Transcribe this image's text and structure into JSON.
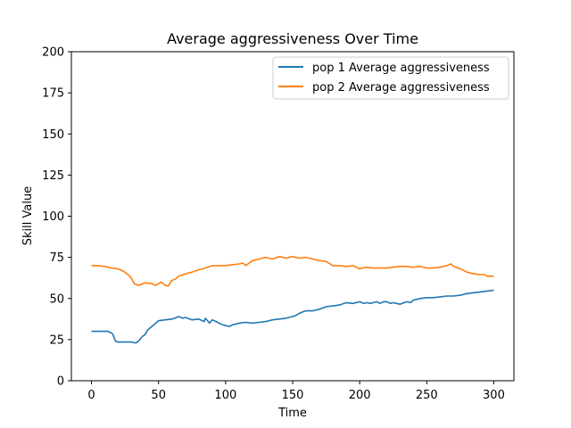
{
  "chart_data": {
    "type": "line",
    "title": "Average aggressiveness Over Time",
    "xlabel": "Time",
    "ylabel": "Skill Value",
    "xlim": [
      -15,
      315
    ],
    "ylim": [
      0,
      200
    ],
    "x_ticks": [
      "0",
      "50",
      "100",
      "150",
      "200",
      "250",
      "300"
    ],
    "y_ticks": [
      "0",
      "25",
      "50",
      "75",
      "100",
      "125",
      "150",
      "175",
      "200"
    ],
    "grid": false,
    "legend_position": "top-right",
    "series": [
      {
        "name": "pop 1 Average aggressiveness",
        "color": "#1f77b4",
        "x": [
          0,
          5,
          10,
          12,
          15,
          16,
          18,
          20,
          25,
          30,
          33,
          35,
          38,
          40,
          42,
          45,
          48,
          50,
          55,
          60,
          62,
          65,
          68,
          70,
          75,
          80,
          84,
          85,
          88,
          90,
          93,
          95,
          98,
          100,
          103,
          105,
          108,
          110,
          115,
          120,
          125,
          130,
          135,
          140,
          145,
          150,
          152,
          155,
          158,
          160,
          165,
          170,
          175,
          180,
          185,
          190,
          195,
          200,
          203,
          205,
          208,
          210,
          213,
          215,
          218,
          220,
          223,
          225,
          230,
          235,
          238,
          240,
          245,
          250,
          255,
          260,
          265,
          270,
          275,
          280,
          285,
          290,
          295,
          300
        ],
        "y": [
          30,
          30,
          30,
          30,
          29,
          28,
          24,
          23.5,
          23.5,
          23.5,
          23,
          24,
          27,
          28,
          31,
          33,
          35,
          36.5,
          37,
          37.5,
          38,
          39,
          38,
          38.5,
          37,
          37.5,
          36,
          38,
          35,
          37,
          36,
          35,
          34,
          33.5,
          33,
          34,
          34.5,
          35,
          35.5,
          35,
          35.5,
          36,
          37,
          37.5,
          38,
          39,
          39.5,
          41,
          42,
          42.5,
          42.5,
          43.5,
          45,
          45.5,
          46,
          47.5,
          47,
          48,
          47,
          47.5,
          47,
          47.5,
          48,
          47,
          48,
          48,
          47,
          47.5,
          46.5,
          48,
          47.5,
          49,
          50,
          50.5,
          50.5,
          51,
          51.5,
          51.5,
          52,
          53,
          53.5,
          54,
          54.5,
          55
        ]
      },
      {
        "name": "pop 2 Average aggressiveness",
        "color": "#ff7f0e",
        "x": [
          0,
          5,
          10,
          15,
          20,
          25,
          28,
          30,
          32,
          35,
          40,
          45,
          48,
          50,
          52,
          55,
          57,
          60,
          63,
          65,
          70,
          75,
          80,
          85,
          90,
          95,
          100,
          105,
          110,
          113,
          115,
          120,
          125,
          130,
          135,
          140,
          145,
          150,
          155,
          160,
          165,
          170,
          175,
          180,
          185,
          190,
          195,
          200,
          205,
          210,
          215,
          220,
          225,
          230,
          235,
          240,
          245,
          250,
          255,
          260,
          265,
          268,
          270,
          275,
          280,
          285,
          290,
          293,
          295,
          300
        ],
        "y": [
          70,
          70,
          69.5,
          68.5,
          68,
          66,
          64,
          62,
          59,
          58,
          59.5,
          59,
          58,
          59,
          60,
          58,
          57.5,
          61,
          62,
          63.5,
          65,
          66,
          67.5,
          68.5,
          70,
          70,
          70,
          70.5,
          71,
          71.5,
          70,
          73,
          74,
          75,
          74,
          75.5,
          74.5,
          75.5,
          74.5,
          75,
          74,
          73,
          72.5,
          70,
          70,
          69.5,
          70,
          68,
          69,
          68.5,
          68.5,
          68.5,
          69,
          69.5,
          69.5,
          69,
          69.5,
          68.5,
          68.5,
          69,
          70,
          71,
          69.5,
          68,
          66,
          65,
          64.5,
          64.5,
          63.5,
          63.5
        ]
      }
    ]
  }
}
